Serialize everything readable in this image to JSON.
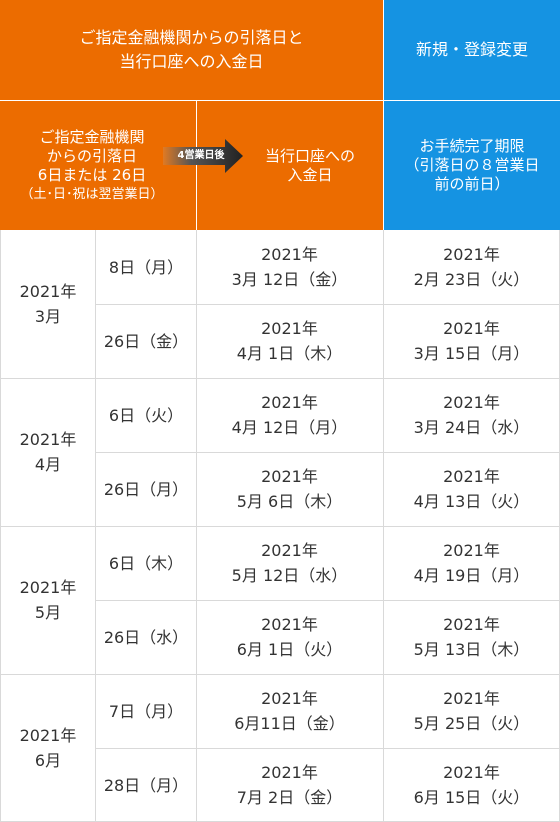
{
  "header": {
    "top_left": "ご指定金融機関からの引落日と\n当行口座への入金日",
    "top_right": "新規・登録変更",
    "col1": "ご指定金融機関\nからの引落日\n6日または 26日",
    "col1_note": "（土･日･祝は翌営業日）",
    "arrow_label": "4営業日後",
    "col2": "当行口座への\n入金日",
    "col3": "お手続完了期限",
    "col3_note": "（引落日の８営業日\n前の前日）"
  },
  "colors": {
    "orange": "#ec6c00",
    "blue": "#1593e2",
    "grid": "#d9d9d9",
    "text": "#333333"
  },
  "rows": [
    {
      "month": "2021年\n3月",
      "items": [
        {
          "day": "8日（月）",
          "deposit": "2021年\n3月 12日（金）",
          "deadline": "2021年\n2月 23日（火）"
        },
        {
          "day": "26日（金）",
          "deposit": "2021年\n4月 1日（木）",
          "deadline": "2021年\n3月 15日（月）"
        }
      ]
    },
    {
      "month": "2021年\n4月",
      "items": [
        {
          "day": "6日（火）",
          "deposit": "2021年\n4月 12日（月）",
          "deadline": "2021年\n3月 24日（水）"
        },
        {
          "day": "26日（月）",
          "deposit": "2021年\n5月 6日（木）",
          "deadline": "2021年\n4月 13日（火）"
        }
      ]
    },
    {
      "month": "2021年\n5月",
      "items": [
        {
          "day": "6日（木）",
          "deposit": "2021年\n5月 12日（水）",
          "deadline": "2021年\n4月 19日（月）"
        },
        {
          "day": "26日（水）",
          "deposit": "2021年\n6月 1日（火）",
          "deadline": "2021年\n5月 13日（木）"
        }
      ]
    },
    {
      "month": "2021年\n6月",
      "items": [
        {
          "day": "7日（月）",
          "deposit": "2021年\n6月11日（金）",
          "deadline": "2021年\n5月 25日（火）"
        },
        {
          "day": "28日（月）",
          "deposit": "2021年\n7月 2日（金）",
          "deadline": "2021年\n6月 15日（火）"
        }
      ]
    }
  ]
}
